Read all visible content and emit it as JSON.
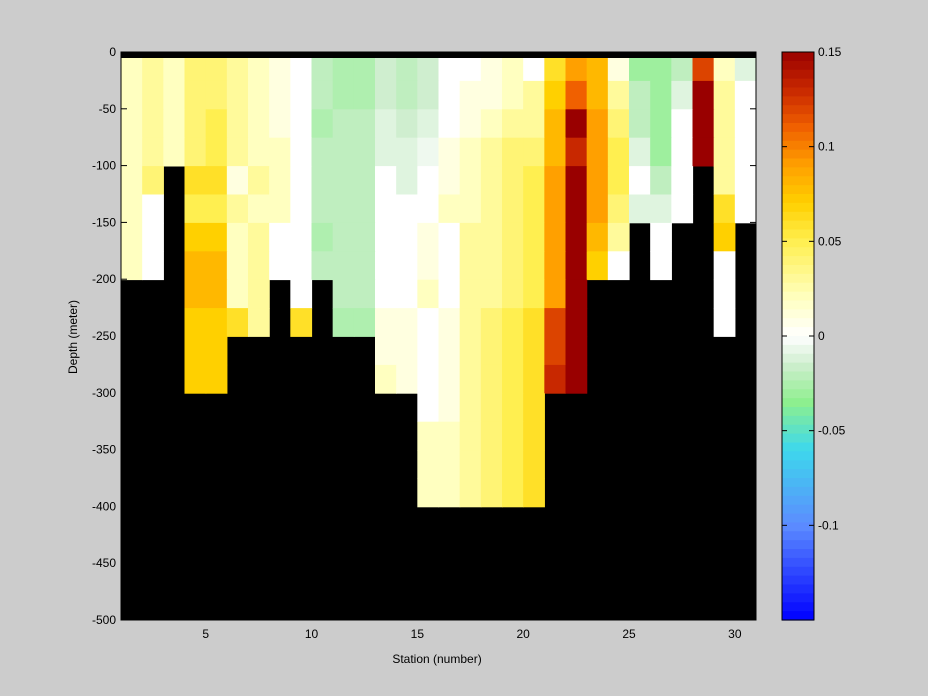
{
  "figure": {
    "background": "#cccccc",
    "mask_color": "#000000"
  },
  "chart_data": {
    "type": "heatmap",
    "xlabel": "Station (number)",
    "ylabel": "Depth (meter)",
    "xlim": [
      1,
      31
    ],
    "ylim": [
      -500,
      0
    ],
    "xticks": [
      5,
      10,
      15,
      20,
      25,
      30
    ],
    "yticks": [
      0,
      -50,
      -100,
      -150,
      -200,
      -250,
      -300,
      -350,
      -400,
      -450,
      -500
    ],
    "colorbar": {
      "range": [
        -0.15,
        0.15
      ],
      "ticks": [
        0.15,
        0.1,
        0.05,
        0,
        -0.05,
        -0.1
      ],
      "tick_labels": [
        "0.15",
        "0.1",
        "0.05",
        "0",
        "-0.05",
        "-0.1"
      ],
      "colormap": [
        [
          -0.15,
          "#0000ff"
        ],
        [
          -0.1,
          "#5c8cff"
        ],
        [
          -0.06,
          "#3dd8ec"
        ],
        [
          -0.035,
          "#8eef8e"
        ],
        [
          -0.015,
          "#cfeecf"
        ],
        [
          0,
          "#ffffff"
        ],
        [
          0.02,
          "#ffffc0"
        ],
        [
          0.05,
          "#ffef50"
        ],
        [
          0.07,
          "#ffd000"
        ],
        [
          0.09,
          "#ffa000"
        ],
        [
          0.11,
          "#f06000"
        ],
        [
          0.13,
          "#c82800"
        ],
        [
          0.15,
          "#990000"
        ]
      ]
    },
    "stations": [
      1,
      2,
      3,
      4,
      5,
      6,
      7,
      8,
      9,
      10,
      11,
      12,
      13,
      14,
      15,
      16,
      17,
      18,
      19,
      20,
      21,
      22,
      23,
      24,
      25,
      26,
      27,
      28,
      29,
      30
    ],
    "depth_levels": [
      -10,
      -25,
      -50,
      -75,
      -100,
      -125,
      -150,
      -175,
      -200,
      -225,
      -250,
      -275,
      -300,
      -325,
      -350,
      -375,
      -400,
      -425,
      -450,
      -475,
      -500
    ],
    "bottom_depth": [
      -200,
      -200,
      -100,
      -300,
      -300,
      -250,
      -250,
      -200,
      -250,
      -200,
      -250,
      -250,
      -300,
      -300,
      -400,
      -400,
      -400,
      -400,
      -400,
      -400,
      -300,
      -300,
      -200,
      -200,
      -150,
      -200,
      -150,
      -100,
      -250,
      -150
    ],
    "values": [
      [
        0.02,
        0.03,
        0.02,
        0.04,
        0.04,
        0.03,
        0.02,
        0.01,
        0.0,
        -0.02,
        -0.025,
        -0.025,
        -0.015,
        -0.02,
        -0.015,
        0.0,
        0.0,
        0.01,
        0.02,
        0.0,
        0.06,
        0.09,
        0.08,
        0.01,
        -0.03,
        -0.03,
        -0.02,
        0.12,
        0.02,
        -0.01
      ],
      [
        0.02,
        0.03,
        0.02,
        0.04,
        0.04,
        0.03,
        0.02,
        0.01,
        0.0,
        -0.02,
        -0.025,
        -0.025,
        -0.015,
        -0.02,
        -0.015,
        0.0,
        0.01,
        0.01,
        0.02,
        0.03,
        0.07,
        0.11,
        0.08,
        0.03,
        -0.02,
        -0.03,
        -0.01,
        0.15,
        0.03,
        0.0
      ],
      [
        0.02,
        0.03,
        0.02,
        0.04,
        0.05,
        0.03,
        0.02,
        0.01,
        0.0,
        -0.025,
        -0.02,
        -0.02,
        -0.01,
        -0.015,
        -0.01,
        0.0,
        0.01,
        0.02,
        0.03,
        0.03,
        0.08,
        0.15,
        0.09,
        0.04,
        -0.02,
        -0.03,
        0.0,
        0.15,
        0.03,
        0.0
      ],
      [
        0.02,
        0.03,
        0.02,
        0.04,
        0.05,
        0.03,
        0.02,
        0.02,
        0.0,
        -0.02,
        -0.02,
        -0.02,
        -0.01,
        -0.01,
        -0.005,
        0.01,
        0.02,
        0.03,
        0.04,
        0.04,
        0.08,
        0.13,
        0.09,
        0.05,
        -0.01,
        -0.03,
        0.0,
        0.15,
        0.03,
        0.0
      ],
      [
        0.02,
        0.04,
        0.0,
        0.06,
        0.06,
        0.01,
        0.03,
        0.02,
        0.0,
        -0.02,
        -0.02,
        -0.02,
        0.0,
        -0.01,
        0.0,
        0.01,
        0.02,
        0.03,
        0.04,
        0.05,
        0.09,
        0.15,
        0.09,
        0.05,
        0.0,
        -0.02,
        0.0,
        0.15,
        0.03,
        0.0
      ],
      [
        0.02,
        0.0,
        0.0,
        0.05,
        0.05,
        0.03,
        0.02,
        0.02,
        0.0,
        -0.02,
        -0.02,
        -0.02,
        0.0,
        0.0,
        0.0,
        0.02,
        0.02,
        0.03,
        0.04,
        0.05,
        0.09,
        0.15,
        0.09,
        0.04,
        -0.01,
        -0.01,
        0.0,
        0.15,
        0.06,
        0.0
      ],
      [
        0.02,
        0.0,
        0.0,
        0.07,
        0.07,
        0.02,
        0.03,
        0.0,
        0.0,
        -0.025,
        -0.02,
        -0.02,
        0.0,
        0.0,
        0.01,
        0.0,
        0.03,
        0.03,
        0.04,
        0.05,
        0.09,
        0.15,
        0.08,
        0.03,
        -0.005,
        0.0,
        0.0,
        0.13,
        0.07,
        0.0
      ],
      [
        0.02,
        0.0,
        0.0,
        0.08,
        0.08,
        0.02,
        0.03,
        0.0,
        0.0,
        -0.02,
        -0.02,
        -0.02,
        0.0,
        0.0,
        0.01,
        0.0,
        0.03,
        0.03,
        0.04,
        0.05,
        0.09,
        0.15,
        0.07,
        0.0,
        0.0,
        0.0,
        0.0,
        0.11,
        0.0,
        0.0
      ],
      [
        0.02,
        0.0,
        0.0,
        0.08,
        0.08,
        0.02,
        0.03,
        0.0,
        0.0,
        -0.015,
        -0.02,
        -0.02,
        0.0,
        0.0,
        0.02,
        0.0,
        0.03,
        0.03,
        0.04,
        0.05,
        0.09,
        0.15,
        0.07,
        0.0,
        0.0,
        0.0,
        0.0,
        0.11,
        0.0,
        0.0
      ],
      [
        0.0,
        0.0,
        0.0,
        0.07,
        0.07,
        0.06,
        0.03,
        0.0,
        0.06,
        0.0,
        -0.025,
        -0.025,
        0.01,
        0.01,
        0.0,
        0.01,
        0.03,
        0.04,
        0.05,
        0.06,
        0.12,
        0.15,
        0.0,
        0.0,
        0.0,
        0.0,
        0.0,
        0.07,
        0.0,
        0.0
      ],
      [
        0.0,
        0.0,
        0.0,
        0.07,
        0.07,
        0.06,
        0.03,
        0.0,
        0.06,
        0.0,
        -0.025,
        -0.025,
        0.01,
        0.01,
        0.0,
        0.01,
        0.03,
        0.04,
        0.05,
        0.06,
        0.12,
        0.15,
        0.0,
        0.0,
        0.0,
        0.0,
        0.0,
        0.07,
        0.0,
        0.0
      ],
      [
        0.0,
        0.0,
        0.0,
        0.07,
        0.07,
        0.0,
        0.0,
        0.0,
        0.0,
        0.0,
        0.0,
        0.0,
        0.02,
        0.01,
        0.0,
        0.01,
        0.03,
        0.04,
        0.05,
        0.06,
        0.13,
        0.15,
        0.0,
        0.0,
        0.0,
        0.0,
        0.0,
        0.0,
        0.0,
        0.0
      ],
      [
        0.0,
        0.0,
        0.0,
        0.07,
        0.07,
        0.0,
        0.0,
        0.0,
        0.0,
        0.0,
        0.0,
        0.0,
        0.02,
        0.01,
        0.0,
        0.01,
        0.03,
        0.04,
        0.05,
        0.06,
        0.13,
        0.15,
        0.0,
        0.0,
        0.0,
        0.0,
        0.0,
        0.0,
        0.0,
        0.0
      ],
      [
        0.0,
        0.0,
        0.0,
        0.0,
        0.0,
        0.0,
        0.0,
        0.0,
        0.0,
        0.0,
        0.0,
        0.0,
        0.0,
        0.0,
        0.02,
        0.02,
        0.03,
        0.04,
        0.05,
        0.06,
        0.0,
        0.0,
        0.0,
        0.0,
        0.0,
        0.0,
        0.0,
        0.0,
        0.0,
        0.0
      ],
      [
        0.0,
        0.0,
        0.0,
        0.0,
        0.0,
        0.0,
        0.0,
        0.0,
        0.0,
        0.0,
        0.0,
        0.0,
        0.0,
        0.0,
        0.02,
        0.02,
        0.03,
        0.04,
        0.05,
        0.06,
        0.0,
        0.0,
        0.0,
        0.0,
        0.0,
        0.0,
        0.0,
        0.0,
        0.0,
        0.0
      ],
      [
        0.0,
        0.0,
        0.0,
        0.0,
        0.0,
        0.0,
        0.0,
        0.0,
        0.0,
        0.0,
        0.0,
        0.0,
        0.0,
        0.0,
        0.02,
        0.02,
        0.03,
        0.04,
        0.05,
        0.06,
        0.0,
        0.0,
        0.0,
        0.0,
        0.0,
        0.0,
        0.0,
        0.0,
        0.0,
        0.0
      ],
      [
        0.0,
        0.0,
        0.0,
        0.0,
        0.0,
        0.0,
        0.0,
        0.0,
        0.0,
        0.0,
        0.0,
        0.0,
        0.0,
        0.0,
        0.02,
        0.02,
        0.03,
        0.04,
        0.05,
        0.06,
        0.0,
        0.0,
        0.0,
        0.0,
        0.0,
        0.0,
        0.0,
        0.0,
        0.0,
        0.0
      ]
    ]
  }
}
